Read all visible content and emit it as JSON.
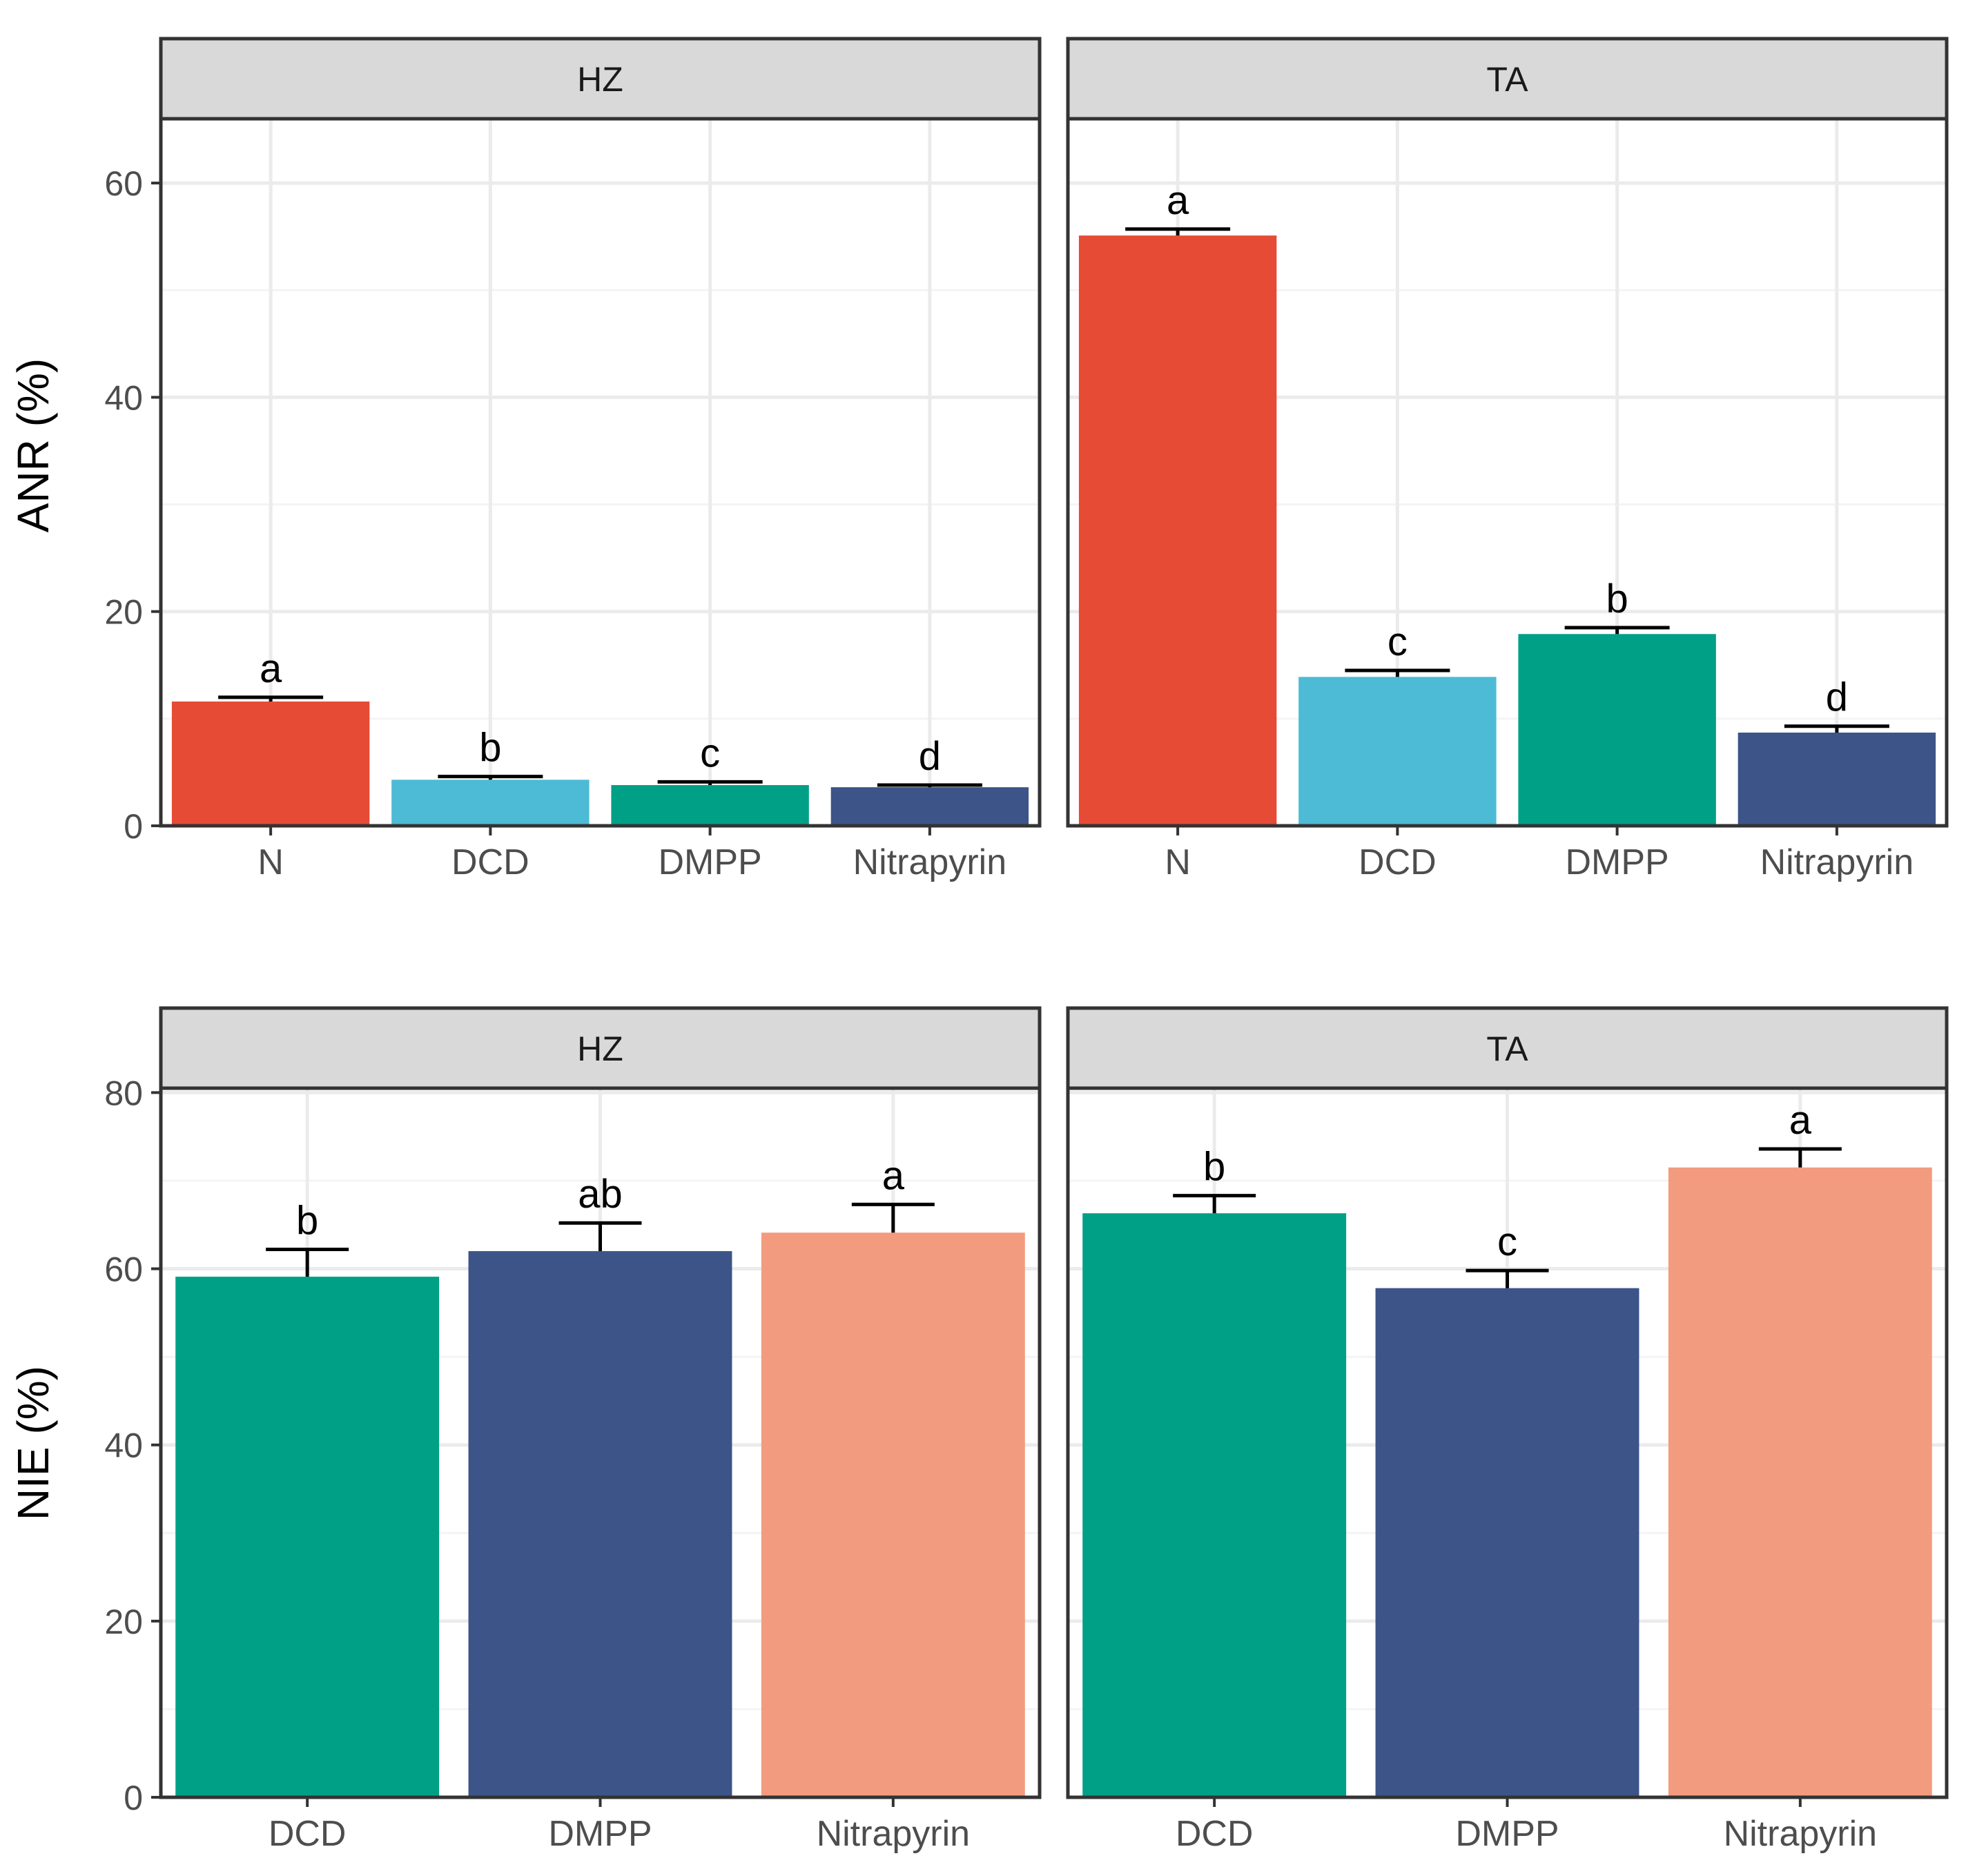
{
  "chart_data": [
    {
      "type": "bar",
      "ylabel": "ANR (%)",
      "ylim": [
        0,
        66
      ],
      "yticks": [
        0,
        20,
        40,
        60
      ],
      "grid": true,
      "panels": [
        {
          "strip": "HZ",
          "categories": [
            "N",
            "DCD",
            "DMPP",
            "Nitrapyrin"
          ],
          "values": [
            11.6,
            4.3,
            3.8,
            3.6
          ],
          "errors": [
            0.4,
            0.3,
            0.3,
            0.2
          ],
          "letters": [
            "a",
            "b",
            "c",
            "d"
          ],
          "colors": [
            "#E64B35",
            "#4DBBD5",
            "#00A087",
            "#3C5488"
          ]
        },
        {
          "strip": "TA",
          "categories": [
            "N",
            "DCD",
            "DMPP",
            "Nitrapyrin"
          ],
          "values": [
            55.1,
            13.9,
            17.9,
            8.7
          ],
          "errors": [
            0.6,
            0.6,
            0.6,
            0.6
          ],
          "letters": [
            "a",
            "c",
            "b",
            "d"
          ],
          "colors": [
            "#E64B35",
            "#4DBBD5",
            "#00A087",
            "#3C5488"
          ]
        }
      ]
    },
    {
      "type": "bar",
      "ylabel": "NIE (%)",
      "ylim": [
        0,
        80.5
      ],
      "yticks": [
        0,
        20,
        40,
        60,
        80
      ],
      "grid": true,
      "panels": [
        {
          "strip": "HZ",
          "categories": [
            "DCD",
            "DMPP",
            "Nitrapyrin"
          ],
          "values": [
            59.1,
            62.0,
            64.1
          ],
          "errors": [
            3.1,
            3.2,
            3.2
          ],
          "letters": [
            "b",
            "ab",
            "a"
          ],
          "colors": [
            "#00A087",
            "#3C5488",
            "#F39B7F"
          ]
        },
        {
          "strip": "TA",
          "categories": [
            "DCD",
            "DMPP",
            "Nitrapyrin"
          ],
          "values": [
            66.3,
            57.8,
            71.5
          ],
          "errors": [
            2.0,
            2.0,
            2.1
          ],
          "letters": [
            "b",
            "c",
            "a"
          ],
          "colors": [
            "#00A087",
            "#3C5488",
            "#F39B7F"
          ]
        }
      ]
    }
  ]
}
